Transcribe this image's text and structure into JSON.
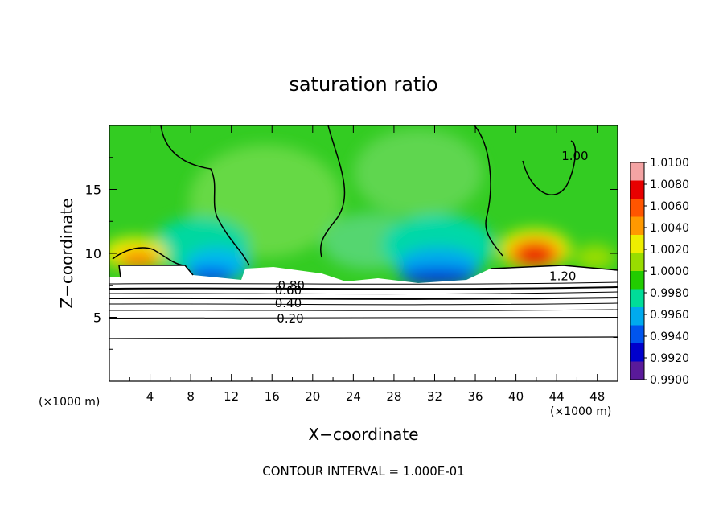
{
  "chart_data": {
    "type": "heatmap",
    "title": "saturation ratio",
    "xlabel": "X−coordinate",
    "ylabel": "Z−coordinate",
    "x_unit": "(×1000 m)",
    "y_unit": "(×1000 m)",
    "xlim": [
      0,
      50
    ],
    "ylim": [
      0,
      20
    ],
    "x_ticks": [
      4,
      8,
      12,
      16,
      20,
      24,
      28,
      32,
      36,
      40,
      44,
      48
    ],
    "y_ticks": [
      5,
      10,
      15
    ],
    "colorbar": {
      "min": 0.99,
      "max": 1.01,
      "tick_labels": [
        "1.0100",
        "1.0080",
        "1.0060",
        "1.0040",
        "1.0020",
        "1.0000",
        "0.9980",
        "0.9960",
        "0.9940",
        "0.9920",
        "0.9900"
      ],
      "colors": [
        "#f4a3a3",
        "#e80000",
        "#ff5500",
        "#ff9900",
        "#eeee00",
        "#99dd00",
        "#22cc00",
        "#00dd99",
        "#00aaee",
        "#0055ee",
        "#0000cc",
        "#5a1a9a"
      ]
    },
    "contour_labels": [
      {
        "text": "1.00",
        "x": 45.8,
        "y": 17.6
      },
      {
        "text": "1.20",
        "x": 44.6,
        "y": 8.2
      },
      {
        "text": "0.20",
        "x": 17.8,
        "y": 4.9
      },
      {
        "text": "0.40",
        "x": 17.6,
        "y": 6.1
      },
      {
        "text": "0.60",
        "x": 17.6,
        "y": 7.1
      },
      {
        "text": "0.80",
        "x": 17.9,
        "y": 7.5
      }
    ],
    "contour_interval": "CONTOUR INTERVAL = 1.000E-01"
  }
}
